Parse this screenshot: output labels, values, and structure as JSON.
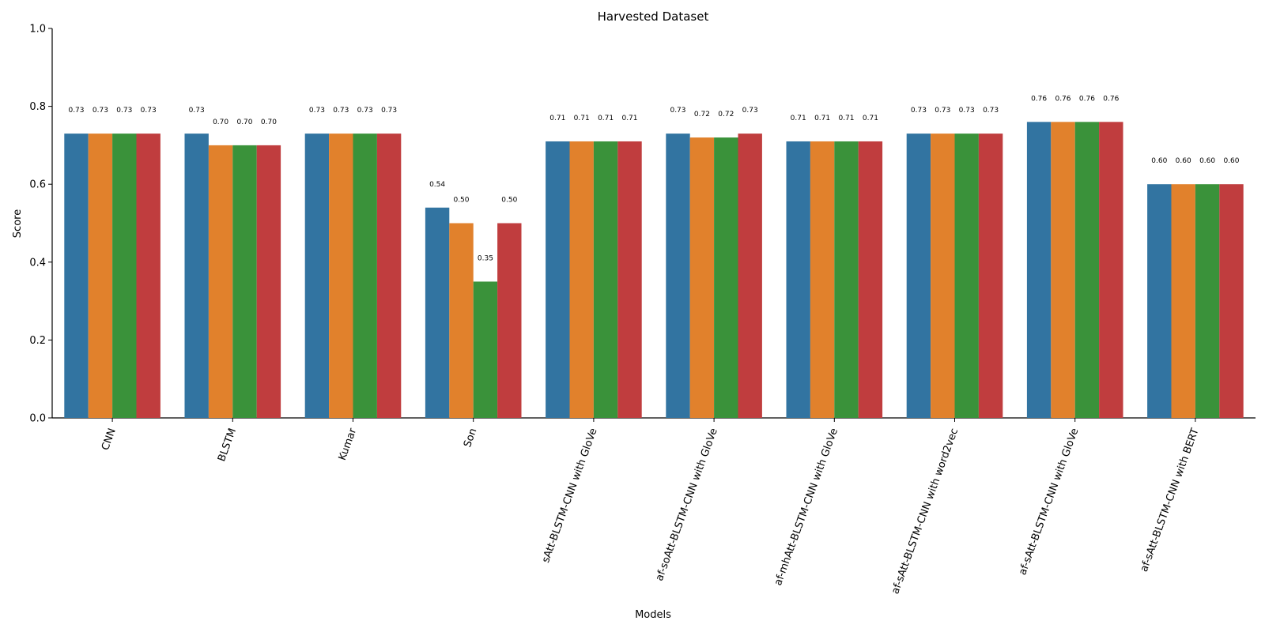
{
  "chart_data": {
    "type": "bar",
    "title": "Harvested Dataset",
    "xlabel": "Models",
    "ylabel": "Score",
    "ylim": [
      0,
      1.0
    ],
    "yticks": [
      "0.0",
      "0.2",
      "0.4",
      "0.6",
      "0.8",
      "1.0"
    ],
    "grid": false,
    "legend": "none",
    "categories": [
      "CNN",
      "BLSTM",
      "Kumar",
      "Son",
      "sAtt-BLSTM-CNN with GloVe",
      "af-soAtt-BLSTM-CNN with GloVe",
      "af-mhAtt-BLSTM-CNN with GloVe",
      "af-sAtt-BLSTM-CNN with word2vec",
      "af-sAtt-BLSTM-CNN with GloVe",
      "af-sAtt-BLSTM-CNN with BERT"
    ],
    "series": [
      {
        "color": "#3274a1",
        "values": [
          0.73,
          0.73,
          0.73,
          0.54,
          0.71,
          0.73,
          0.71,
          0.73,
          0.76,
          0.6
        ],
        "labels": [
          "0.73",
          "0.73",
          "0.73",
          "0.54",
          "0.71",
          "0.73",
          "0.71",
          "0.73",
          "0.76",
          "0.60"
        ]
      },
      {
        "color": "#e1812c",
        "values": [
          0.73,
          0.7,
          0.73,
          0.5,
          0.71,
          0.72,
          0.71,
          0.73,
          0.76,
          0.6
        ],
        "labels": [
          "0.73",
          "0.70",
          "0.73",
          "0.50",
          "0.71",
          "0.72",
          "0.71",
          "0.73",
          "0.76",
          "0.60"
        ]
      },
      {
        "color": "#3a923a",
        "values": [
          0.73,
          0.7,
          0.73,
          0.35,
          0.71,
          0.72,
          0.71,
          0.73,
          0.76,
          0.6
        ],
        "labels": [
          "0.73",
          "0.70",
          "0.73",
          "0.35",
          "0.71",
          "0.72",
          "0.71",
          "0.73",
          "0.76",
          "0.60"
        ]
      },
      {
        "color": "#c03d3e",
        "values": [
          0.73,
          0.7,
          0.73,
          0.5,
          0.71,
          0.73,
          0.71,
          0.73,
          0.76,
          0.6
        ],
        "labels": [
          "0.73",
          "0.70",
          "0.73",
          "0.50",
          "0.71",
          "0.73",
          "0.71",
          "0.73",
          "0.76",
          "0.60"
        ]
      }
    ]
  }
}
